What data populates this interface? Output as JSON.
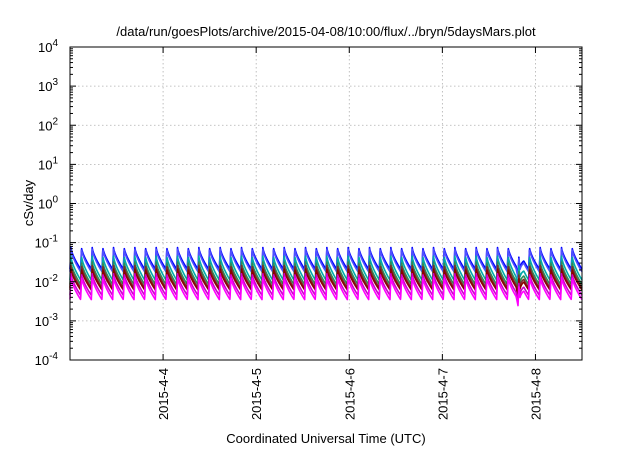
{
  "chart_data": {
    "type": "line",
    "title": "/data/run/goesPlots/archive/2015-04-08/10:00/flux/../bryn/5daysMars.plot",
    "xlabel": "Coordinated Universal Time (UTC)",
    "ylabel": "cSv/day",
    "y_scale": "log",
    "ylim": [
      0.0001,
      10000
    ],
    "xlim": [
      "2015-04-03T00:00",
      "2015-04-08T12:00"
    ],
    "grid": true,
    "legend": "none",
    "x_ticks": [
      {
        "x": "2015-04-04T00:00",
        "label": "2015-4-4"
      },
      {
        "x": "2015-04-05T00:00",
        "label": "2015-4-5"
      },
      {
        "x": "2015-04-06T00:00",
        "label": "2015-4-6"
      },
      {
        "x": "2015-04-07T00:00",
        "label": "2015-4-7"
      },
      {
        "x": "2015-04-08T00:00",
        "label": "2015-4-8"
      }
    ],
    "y_ticks": [
      {
        "y": 0.0001,
        "base": "10",
        "exp": "-4"
      },
      {
        "y": 0.001,
        "base": "10",
        "exp": "-3"
      },
      {
        "y": 0.01,
        "base": "10",
        "exp": "-2"
      },
      {
        "y": 0.1,
        "base": "10",
        "exp": "-1"
      },
      {
        "y": 1,
        "base": "10",
        "exp": "0"
      },
      {
        "y": 10,
        "base": "10",
        "exp": "1"
      },
      {
        "y": 100,
        "base": "10",
        "exp": "2"
      },
      {
        "y": 1000,
        "base": "10",
        "exp": "3"
      },
      {
        "y": 10000,
        "base": "10",
        "exp": "4"
      }
    ],
    "series": [
      {
        "color": "#0000ff",
        "peak": 0.075,
        "trough": 0.021
      },
      {
        "color": "#5050ff",
        "peak": 0.068,
        "trough": 0.018
      },
      {
        "color": "#00aaaa",
        "peak": 0.045,
        "trough": 0.011
      },
      {
        "color": "#2e8b57",
        "peak": 0.032,
        "trough": 0.0085
      },
      {
        "color": "#7b2d2d",
        "peak": 0.026,
        "trough": 0.007
      },
      {
        "color": "#8b0000",
        "peak": 0.021,
        "trough": 0.0062
      },
      {
        "color": "#cc00cc",
        "peak": 0.016,
        "trough": 0.0045
      },
      {
        "color": "#ff00ff",
        "peak": 0.013,
        "trough": 0.0035
      }
    ],
    "cycle_hours": 2.75,
    "dip": {
      "start": "2015-04-07T19:30",
      "end": "2015-04-07T20:30",
      "min_factor": 0.4
    }
  }
}
